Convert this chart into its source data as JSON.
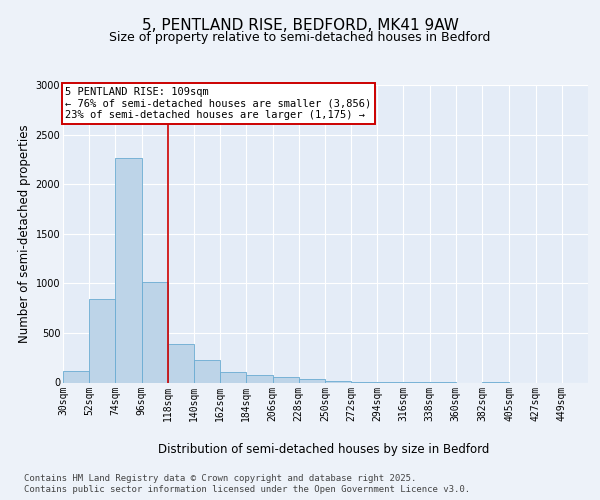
{
  "title": "5, PENTLAND RISE, BEDFORD, MK41 9AW",
  "subtitle": "Size of property relative to semi-detached houses in Bedford",
  "xlabel": "Distribution of semi-detached houses by size in Bedford",
  "ylabel": "Number of semi-detached properties",
  "footer_line1": "Contains HM Land Registry data © Crown copyright and database right 2025.",
  "footer_line2": "Contains public sector information licensed under the Open Government Licence v3.0.",
  "annotation_line1": "5 PENTLAND RISE: 109sqm",
  "annotation_line2": "← 76% of semi-detached houses are smaller (3,856)",
  "annotation_line3": "23% of semi-detached houses are larger (1,175) →",
  "bar_edges": [
    30,
    52,
    74,
    96,
    118,
    140,
    162,
    184,
    206,
    228,
    250,
    272,
    294,
    316,
    338,
    360,
    382,
    405,
    427,
    449,
    471
  ],
  "bar_heights": [
    120,
    840,
    2260,
    1010,
    390,
    225,
    110,
    80,
    55,
    35,
    15,
    5,
    3,
    2,
    1,
    0,
    1,
    0,
    0,
    0
  ],
  "bar_color": "#bdd4e8",
  "bar_edge_color": "#6aabd2",
  "vline_x": 118,
  "vline_color": "#cc0000",
  "annotation_box_edgecolor": "#cc0000",
  "ylim": [
    0,
    3000
  ],
  "yticks": [
    0,
    500,
    1000,
    1500,
    2000,
    2500,
    3000
  ],
  "bg_color": "#edf2f9",
  "plot_bg_color": "#e4ecf7",
  "grid_color": "#ffffff",
  "title_fontsize": 11,
  "subtitle_fontsize": 9,
  "axis_label_fontsize": 8.5,
  "tick_fontsize": 7,
  "footer_fontsize": 6.5,
  "annotation_fontsize": 7.5
}
